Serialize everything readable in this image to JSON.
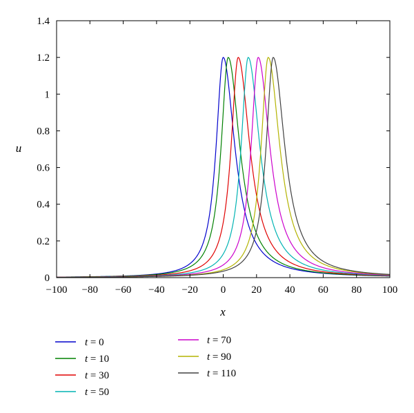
{
  "chart_data": {
    "type": "line",
    "title": "",
    "xlabel": "x",
    "ylabel": "u",
    "xlim": [
      -100,
      100
    ],
    "ylim": [
      0,
      1.4
    ],
    "xticks": [
      "−100",
      "−80",
      "−60",
      "−40",
      "−20",
      "0",
      "20",
      "40",
      "60",
      "80",
      "100"
    ],
    "yticks": [
      "0",
      "0.2",
      "0.4",
      "0.6",
      "0.8",
      "1",
      "1.2",
      "1.4"
    ],
    "grid": false,
    "legend_position": "bottom",
    "series": [
      {
        "name": "t = 0",
        "label_var": "t",
        "label_value": "= 0",
        "color": "#0000cc",
        "peak_x": 0.0,
        "peak_u": 1.2
      },
      {
        "name": "t = 10",
        "label_var": "t",
        "label_value": "= 10",
        "color": "#008000",
        "peak_x": 3.0,
        "peak_u": 1.2
      },
      {
        "name": "t = 30",
        "label_var": "t",
        "label_value": "= 30",
        "color": "#e00000",
        "peak_x": 9.0,
        "peak_u": 1.2
      },
      {
        "name": "t = 50",
        "label_var": "t",
        "label_value": "= 50",
        "color": "#00b3b3",
        "peak_x": 15.0,
        "peak_u": 1.2
      },
      {
        "name": "t = 70",
        "label_var": "t",
        "label_value": "= 70",
        "color": "#cc00cc",
        "peak_x": 21.0,
        "peak_u": 1.2
      },
      {
        "name": "t = 90",
        "label_var": "t",
        "label_value": "= 90",
        "color": "#b3b300",
        "peak_x": 27.0,
        "peak_u": 1.2
      },
      {
        "name": "t = 110",
        "label_var": "t",
        "label_value": "= 110",
        "color": "#404040",
        "peak_x": 30.0,
        "peak_u": 1.2
      }
    ]
  }
}
